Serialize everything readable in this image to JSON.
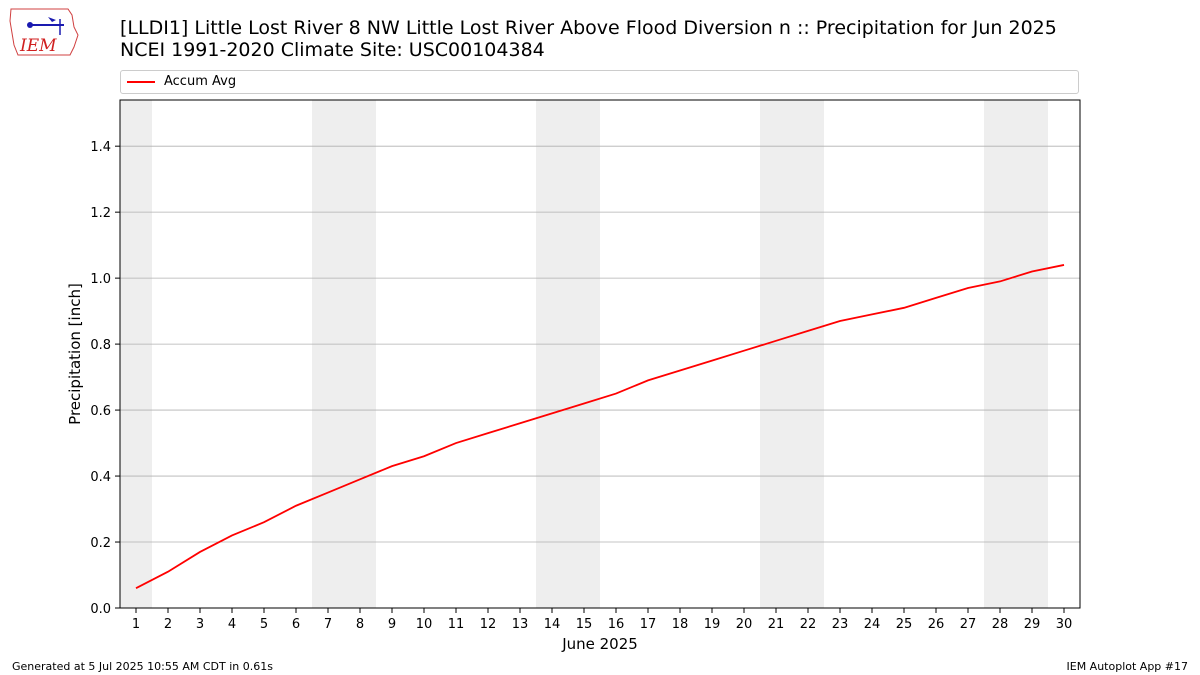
{
  "header": {
    "title_line1": "[LLDI1] Little Lost River 8 NW Little Lost River Above Flood Diversion n :: Precipitation for Jun 2025",
    "title_line2": "NCEI 1991-2020 Climate Site: USC00104384"
  },
  "logo": {
    "text": "IEM",
    "icon": "iem-iowa-logo"
  },
  "footer": {
    "generated": "Generated at 5 Jul 2025 10:55 AM CDT in 0.61s",
    "app": "IEM Autoplot App #17"
  },
  "colors": {
    "line": "#ff0000",
    "weekend_shade": "#eeeeee",
    "grid": "#b0b0b0"
  },
  "chart_data": {
    "type": "line",
    "title": "[LLDI1] Little Lost River 8 NW Little Lost River Above Flood Diversion n :: Precipitation for Jun 2025",
    "xlabel": "June 2025",
    "ylabel": "Precipitation [inch]",
    "x": [
      1,
      2,
      3,
      4,
      5,
      6,
      7,
      8,
      9,
      10,
      11,
      12,
      13,
      14,
      15,
      16,
      17,
      18,
      19,
      20,
      21,
      22,
      23,
      24,
      25,
      26,
      27,
      28,
      29,
      30
    ],
    "series": [
      {
        "name": "Accum Avg",
        "values": [
          0.06,
          0.11,
          0.17,
          0.22,
          0.26,
          0.31,
          0.35,
          0.39,
          0.43,
          0.46,
          0.5,
          0.53,
          0.56,
          0.59,
          0.62,
          0.65,
          0.69,
          0.72,
          0.75,
          0.78,
          0.81,
          0.84,
          0.87,
          0.89,
          0.91,
          0.94,
          0.97,
          0.99,
          1.02,
          1.04
        ]
      }
    ],
    "xlim": [
      0.5,
      30.5
    ],
    "ylim": [
      0,
      1.54
    ],
    "yticks": [
      0.0,
      0.2,
      0.4,
      0.6,
      0.8,
      1.0,
      1.2,
      1.4
    ],
    "ytick_labels": [
      "0.0",
      "0.2",
      "0.4",
      "0.6",
      "0.8",
      "1.0",
      "1.2",
      "1.4"
    ],
    "weekend_spans": [
      [
        0.5,
        1.5
      ],
      [
        6.5,
        8.5
      ],
      [
        13.5,
        15.5
      ],
      [
        20.5,
        22.5
      ],
      [
        27.5,
        29.5
      ]
    ],
    "grid": "horizontal",
    "legend": "top"
  }
}
